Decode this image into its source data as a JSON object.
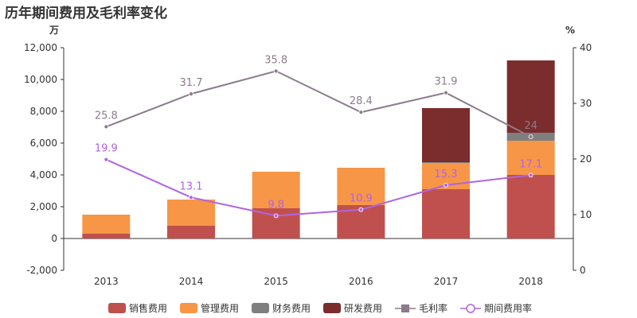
{
  "title": "历年期间费用及毛利率变化",
  "chart_data": {
    "type": "bar",
    "stacked": true,
    "categories": [
      "2013",
      "2014",
      "2015",
      "2016",
      "2017",
      "2018"
    ],
    "left_unit": "万",
    "right_unit": "%",
    "left_axis": {
      "min": -2000,
      "max": 12000,
      "step": 2000,
      "ticks": [
        "-2,000",
        "0",
        "2,000",
        "4,000",
        "6,000",
        "8,000",
        "10,000",
        "12,000"
      ]
    },
    "right_axis": {
      "min": 0,
      "max": 40,
      "step": 10,
      "ticks": [
        "0",
        "10",
        "20",
        "30",
        "40"
      ]
    },
    "series": [
      {
        "name": "销售费用",
        "kind": "bar",
        "color": "#c0504d",
        "values": [
          300,
          800,
          1900,
          2100,
          3100,
          4000
        ]
      },
      {
        "name": "管理费用",
        "kind": "bar",
        "color": "#f79646",
        "values": [
          1200,
          1650,
          2300,
          2350,
          1650,
          2150
        ]
      },
      {
        "name": "财务费用",
        "kind": "bar",
        "color": "#7f7f7f",
        "values": [
          0,
          0,
          0,
          0,
          50,
          500
        ]
      },
      {
        "name": "研发费用",
        "kind": "bar",
        "color": "#7b2c2c",
        "values": [
          0,
          0,
          0,
          0,
          3400,
          4550
        ]
      },
      {
        "name": "毛利率",
        "kind": "line",
        "color": "#8b7b8b",
        "marker": "square",
        "values": [
          25.8,
          31.7,
          35.8,
          28.4,
          31.9,
          24
        ],
        "labels": [
          "25.8",
          "31.7",
          "35.8",
          "28.4",
          "31.9",
          "24"
        ]
      },
      {
        "name": "期间费用率",
        "kind": "line",
        "color": "#b164e0",
        "marker": "circle",
        "values": [
          19.9,
          13.1,
          9.8,
          10.9,
          15.3,
          17.1
        ],
        "labels": [
          "19.9",
          "13.1",
          "9.8",
          "10.9",
          "15.3",
          "17.1"
        ]
      }
    ],
    "grid": false,
    "legend_position": "bottom"
  }
}
